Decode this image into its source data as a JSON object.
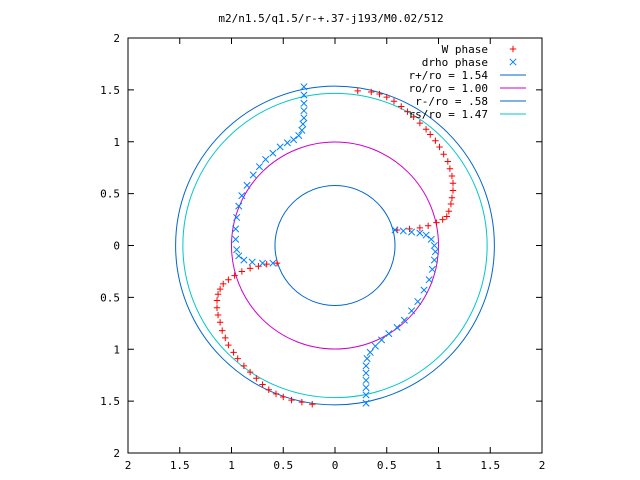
{
  "chart_data": {
    "type": "scatter",
    "title": "m2/n1.5/q1.5/r-+.37-j193/M0.02/512",
    "xlabel": "",
    "ylabel": "",
    "xlim": [
      -2,
      2
    ],
    "ylim": [
      -2,
      2
    ],
    "x_tick_labels": [
      "2",
      "1.5",
      "1",
      "0.5",
      "0",
      "0.5",
      "1",
      "1.5",
      "2"
    ],
    "y_tick_labels": [
      "2",
      "1.5",
      "1",
      "0.5",
      "0",
      "0.5",
      "1",
      "1.5",
      "2"
    ],
    "grid": false,
    "legend_position": "top-right",
    "series": [
      {
        "name": "W phase",
        "kind": "points",
        "marker": "plus",
        "color": "#ff0000",
        "points": [
          [
            0.22,
            1.49
          ],
          [
            0.35,
            1.48
          ],
          [
            0.43,
            1.46
          ],
          [
            0.5,
            1.43
          ],
          [
            0.57,
            1.39
          ],
          [
            0.64,
            1.34
          ],
          [
            0.7,
            1.29
          ],
          [
            0.76,
            1.24
          ],
          [
            0.82,
            1.18
          ],
          [
            0.88,
            1.12
          ],
          [
            0.92,
            1.07
          ],
          [
            0.97,
            1.01
          ],
          [
            1.01,
            0.95
          ],
          [
            1.05,
            0.88
          ],
          [
            1.09,
            0.81
          ],
          [
            1.11,
            0.74
          ],
          [
            1.13,
            0.67
          ],
          [
            1.14,
            0.6
          ],
          [
            1.14,
            0.53
          ],
          [
            1.13,
            0.46
          ],
          [
            1.12,
            0.4
          ],
          [
            1.1,
            0.33
          ],
          [
            1.08,
            0.28
          ],
          [
            1.04,
            0.25
          ],
          [
            0.98,
            0.22
          ],
          [
            0.9,
            0.19
          ],
          [
            0.82,
            0.17
          ],
          [
            0.72,
            0.16
          ],
          [
            0.6,
            0.15
          ],
          [
            -0.22,
            -1.53
          ],
          [
            -0.32,
            -1.51
          ],
          [
            -0.42,
            -1.49
          ],
          [
            -0.5,
            -1.46
          ],
          [
            -0.57,
            -1.43
          ],
          [
            -0.64,
            -1.39
          ],
          [
            -0.7,
            -1.34
          ],
          [
            -0.76,
            -1.28
          ],
          [
            -0.82,
            -1.22
          ],
          [
            -0.88,
            -1.16
          ],
          [
            -0.94,
            -1.09
          ],
          [
            -0.98,
            -1.03
          ],
          [
            -1.03,
            -0.96
          ],
          [
            -1.06,
            -0.89
          ],
          [
            -1.09,
            -0.82
          ],
          [
            -1.11,
            -0.74
          ],
          [
            -1.13,
            -0.67
          ],
          [
            -1.14,
            -0.6
          ],
          [
            -1.14,
            -0.53
          ],
          [
            -1.13,
            -0.47
          ],
          [
            -1.11,
            -0.42
          ],
          [
            -1.08,
            -0.37
          ],
          [
            -1.03,
            -0.33
          ],
          [
            -0.97,
            -0.29
          ],
          [
            -0.9,
            -0.25
          ],
          [
            -0.82,
            -0.22
          ],
          [
            -0.74,
            -0.2
          ],
          [
            -0.66,
            -0.18
          ],
          [
            -0.56,
            -0.17
          ]
        ]
      },
      {
        "name": "drho phase",
        "kind": "points",
        "marker": "cross",
        "color": "#0080ff",
        "points": [
          [
            -0.3,
            1.53
          ],
          [
            -0.3,
            1.45
          ],
          [
            -0.3,
            1.37
          ],
          [
            -0.3,
            1.3
          ],
          [
            -0.3,
            1.23
          ],
          [
            -0.31,
            1.17
          ],
          [
            -0.32,
            1.11
          ],
          [
            -0.35,
            1.06
          ],
          [
            -0.4,
            1.02
          ],
          [
            -0.46,
            0.99
          ],
          [
            -0.53,
            0.95
          ],
          [
            -0.6,
            0.89
          ],
          [
            -0.67,
            0.83
          ],
          [
            -0.73,
            0.76
          ],
          [
            -0.79,
            0.68
          ],
          [
            -0.85,
            0.58
          ],
          [
            -0.9,
            0.48
          ],
          [
            -0.93,
            0.38
          ],
          [
            -0.95,
            0.27
          ],
          [
            -0.96,
            0.16
          ],
          [
            -0.96,
            0.06
          ],
          [
            -0.95,
            -0.04
          ],
          [
            -0.93,
            -0.1
          ],
          [
            -0.88,
            -0.14
          ],
          [
            -0.8,
            -0.16
          ],
          [
            -0.7,
            -0.17
          ],
          [
            -0.6,
            -0.17
          ],
          [
            0.58,
            0.15
          ],
          [
            0.66,
            0.14
          ],
          [
            0.74,
            0.13
          ],
          [
            0.82,
            0.12
          ],
          [
            0.88,
            0.1
          ],
          [
            0.93,
            0.06
          ],
          [
            0.96,
            0.0
          ],
          [
            0.97,
            -0.06
          ],
          [
            0.96,
            -0.14
          ],
          [
            0.94,
            -0.23
          ],
          [
            0.91,
            -0.33
          ],
          [
            0.86,
            -0.43
          ],
          [
            0.8,
            -0.54
          ],
          [
            0.74,
            -0.63
          ],
          [
            0.67,
            -0.72
          ],
          [
            0.6,
            -0.79
          ],
          [
            0.52,
            -0.85
          ],
          [
            0.45,
            -0.91
          ],
          [
            0.39,
            -0.97
          ],
          [
            0.34,
            -1.03
          ],
          [
            0.31,
            -1.09
          ],
          [
            0.3,
            -1.16
          ],
          [
            0.3,
            -1.23
          ],
          [
            0.3,
            -1.3
          ],
          [
            0.3,
            -1.37
          ],
          [
            0.3,
            -1.44
          ],
          [
            0.3,
            -1.52
          ]
        ]
      },
      {
        "name": "r+/ro = 1.54",
        "kind": "circle",
        "radius": 1.54,
        "color": "#0066cc"
      },
      {
        "name": "ro/ro = 1.00",
        "kind": "circle",
        "radius": 1.0,
        "color": "#cc00cc"
      },
      {
        "name": "r-/ro = .58",
        "kind": "circle",
        "radius": 0.58,
        "color": "#0066cc"
      },
      {
        "name": "rs/ro = 1.47",
        "kind": "circle",
        "radius": 1.47,
        "color": "#00c8c8"
      }
    ]
  }
}
